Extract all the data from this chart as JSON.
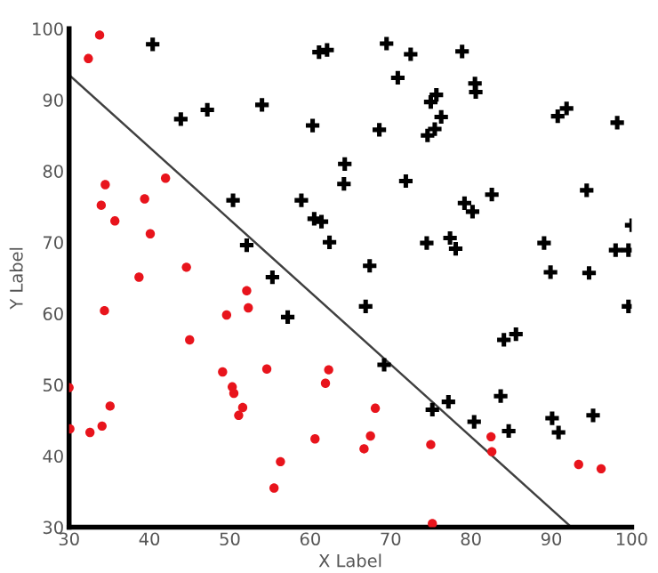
{
  "chart_data": {
    "type": "scatter",
    "xlabel": "X Label",
    "ylabel": "Y Label",
    "xlim": [
      30,
      100
    ],
    "ylim": [
      30,
      100
    ],
    "xticks": [
      30,
      40,
      50,
      60,
      70,
      80,
      90,
      100
    ],
    "yticks": [
      30,
      40,
      50,
      60,
      70,
      80,
      90,
      100
    ],
    "grid": false,
    "legend": false,
    "series": [
      {
        "marker": "circle",
        "color": "#e8141c",
        "x": [
          33.8,
          32.4,
          34.5,
          34.0,
          35.7,
          39.4,
          42.0,
          40.1,
          38.7,
          44.6,
          34.4,
          45.0,
          49.6,
          52.1,
          52.3,
          49.1,
          50.3,
          50.5,
          51.6,
          51.1,
          54.6,
          30.0,
          30.1,
          32.6,
          34.1,
          35.1,
          56.3,
          55.5,
          60.6,
          61.9,
          62.3,
          68.1,
          67.5,
          66.7,
          75.0,
          82.5,
          82.6,
          93.4,
          96.2,
          75.2
        ],
        "values": [
          99.1,
          95.8,
          78.1,
          75.2,
          73.0,
          76.1,
          79.0,
          71.2,
          65.1,
          66.5,
          60.4,
          56.3,
          59.8,
          63.2,
          60.8,
          51.8,
          49.7,
          48.8,
          46.8,
          45.7,
          52.2,
          49.6,
          43.8,
          43.3,
          44.2,
          47.0,
          39.2,
          35.5,
          42.4,
          50.2,
          52.1,
          46.7,
          42.8,
          41.0,
          41.6,
          42.7,
          40.6,
          38.8,
          38.2,
          30.5
        ]
      },
      {
        "marker": "cross",
        "color": "#000000",
        "x": [
          40.4,
          43.9,
          47.2,
          54.0,
          60.3,
          61.1,
          62.1,
          50.4,
          58.9,
          64.3,
          64.2,
          60.5,
          61.4,
          62.4,
          52.1,
          55.3,
          57.2,
          69.5,
          72.5,
          78.9,
          70.9,
          80.5,
          80.6,
          75.7,
          75.0,
          76.3,
          75.5,
          74.6,
          68.6,
          90.8,
          91.9,
          98.2,
          71.9,
          82.6,
          79.2,
          80.2,
          94.4,
          100.0,
          74.5,
          77.4,
          78.1,
          89.1,
          98.0,
          99.6,
          67.4,
          89.9,
          94.7,
          66.9,
          99.6,
          84.1,
          85.6,
          69.2,
          83.7,
          77.2,
          75.2,
          80.4,
          84.7,
          90.1,
          90.9,
          95.2
        ],
        "values": [
          97.8,
          87.3,
          88.6,
          89.3,
          86.4,
          96.7,
          97.0,
          75.9,
          75.9,
          81.0,
          78.2,
          73.3,
          72.9,
          70.0,
          69.6,
          65.1,
          59.5,
          97.9,
          96.4,
          96.8,
          93.1,
          92.3,
          91.1,
          90.7,
          89.7,
          87.6,
          85.9,
          85.0,
          85.8,
          87.7,
          88.8,
          86.8,
          78.6,
          76.7,
          75.5,
          74.3,
          77.3,
          72.4,
          69.9,
          70.6,
          69.1,
          69.9,
          68.9,
          68.9,
          66.7,
          65.8,
          65.7,
          61.0,
          61.0,
          56.3,
          57.1,
          52.8,
          48.4,
          47.6,
          46.5,
          44.8,
          43.5,
          45.3,
          43.3,
          45.7
        ]
      },
      {
        "type": "line",
        "marker": "none",
        "line_style": "solid",
        "color": "#404040",
        "x": [
          30,
          92.5
        ],
        "values": [
          93.5,
          30
        ]
      }
    ]
  }
}
